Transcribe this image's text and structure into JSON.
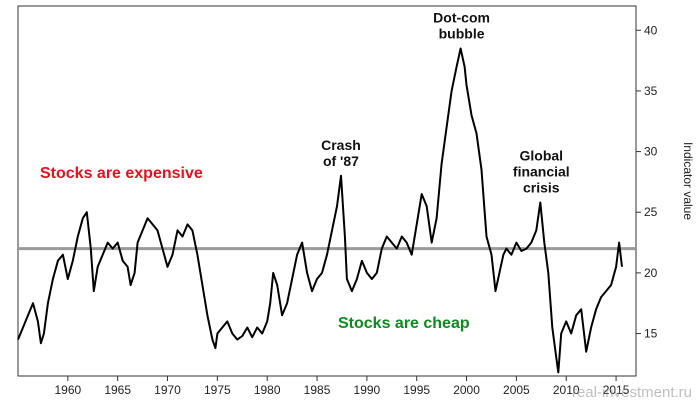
{
  "chart_data": {
    "type": "line",
    "title": "",
    "xlabel": "",
    "ylabel": "Indicator value",
    "xlim": [
      1955,
      2017
    ],
    "ylim": [
      11.5,
      42
    ],
    "grid": false,
    "legend": "none",
    "x_ticks": [
      1960,
      1965,
      1970,
      1975,
      1980,
      1985,
      1990,
      1995,
      2000,
      2005,
      2010,
      2015
    ],
    "x_tick_labels": [
      "1960",
      "1965",
      "1970",
      "1975",
      "1980",
      "1985",
      "1990",
      "1995",
      "2000",
      "2005",
      "2010",
      "2015"
    ],
    "y_ticks": [
      15,
      20,
      25,
      30,
      35,
      40
    ],
    "y_tick_labels": [
      "15",
      "20",
      "25",
      "30",
      "35",
      "40"
    ],
    "reference_line": {
      "value": 22,
      "color": "#9a9a9a"
    },
    "series": [
      {
        "color": "#000000",
        "x": [
          1955.0,
          1955.5,
          1956.0,
          1956.5,
          1957.0,
          1957.3,
          1957.6,
          1958.0,
          1958.5,
          1959.0,
          1959.5,
          1960.0,
          1960.5,
          1961.0,
          1961.5,
          1961.9,
          1962.3,
          1962.6,
          1963.0,
          1963.5,
          1964.0,
          1964.5,
          1965.0,
          1965.5,
          1966.0,
          1966.3,
          1966.7,
          1967.0,
          1967.5,
          1968.0,
          1968.5,
          1969.0,
          1969.5,
          1970.0,
          1970.5,
          1971.0,
          1971.5,
          1972.0,
          1972.5,
          1973.0,
          1973.5,
          1974.0,
          1974.5,
          1974.8,
          1975.0,
          1975.5,
          1976.0,
          1976.5,
          1977.0,
          1977.5,
          1978.0,
          1978.5,
          1979.0,
          1979.5,
          1980.0,
          1980.3,
          1980.6,
          1981.0,
          1981.5,
          1982.0,
          1982.5,
          1983.0,
          1983.5,
          1984.0,
          1984.5,
          1985.0,
          1985.5,
          1986.0,
          1986.5,
          1987.0,
          1987.4,
          1987.8,
          1988.0,
          1988.5,
          1989.0,
          1989.5,
          1990.0,
          1990.5,
          1991.0,
          1991.5,
          1992.0,
          1992.5,
          1993.0,
          1993.5,
          1994.0,
          1994.5,
          1995.0,
          1995.5,
          1996.0,
          1996.5,
          1997.0,
          1997.5,
          1998.0,
          1998.5,
          1999.0,
          1999.4,
          1999.8,
          2000.0,
          2000.5,
          2001.0,
          2001.5,
          2002.0,
          2002.5,
          2002.9,
          2003.3,
          2003.7,
          2004.0,
          2004.5,
          2005.0,
          2005.5,
          2006.0,
          2006.5,
          2007.0,
          2007.4,
          2007.8,
          2008.2,
          2008.6,
          2009.0,
          2009.2,
          2009.5,
          2010.0,
          2010.5,
          2011.0,
          2011.5,
          2012.0,
          2012.5,
          2013.0,
          2013.5,
          2014.0,
          2014.5,
          2015.0,
          2015.3,
          2015.6
        ],
        "y": [
          14.5,
          15.5,
          16.5,
          17.5,
          16.0,
          14.2,
          15.0,
          17.5,
          19.5,
          21.0,
          21.5,
          19.5,
          21.0,
          23.0,
          24.5,
          25.0,
          22.0,
          18.5,
          20.5,
          21.5,
          22.5,
          22.0,
          22.5,
          21.0,
          20.5,
          19.0,
          20.0,
          22.5,
          23.5,
          24.5,
          24.0,
          23.5,
          22.0,
          20.5,
          21.5,
          23.5,
          23.0,
          24.0,
          23.5,
          21.5,
          19.0,
          16.5,
          14.5,
          13.8,
          15.0,
          15.5,
          16.0,
          15.0,
          14.5,
          14.8,
          15.5,
          14.7,
          15.5,
          15.0,
          16.0,
          17.5,
          20.0,
          19.0,
          16.5,
          17.5,
          19.5,
          21.5,
          22.5,
          20.0,
          18.5,
          19.5,
          20.0,
          21.5,
          23.5,
          25.5,
          28.0,
          23.0,
          19.5,
          18.5,
          19.5,
          21.0,
          20.0,
          19.5,
          20.0,
          22.0,
          23.0,
          22.5,
          22.0,
          23.0,
          22.5,
          21.5,
          24.0,
          26.5,
          25.5,
          22.5,
          24.5,
          29.0,
          32.0,
          35.0,
          37.0,
          38.5,
          37.0,
          35.5,
          33.0,
          31.5,
          28.5,
          23.0,
          21.5,
          18.5,
          20.0,
          21.5,
          22.0,
          21.5,
          22.5,
          21.8,
          22.0,
          22.5,
          23.5,
          25.8,
          22.5,
          20.0,
          15.5,
          13.0,
          11.8,
          15.0,
          16.0,
          15.0,
          16.5,
          17.0,
          13.5,
          15.5,
          17.0,
          18.0,
          18.5,
          19.0,
          20.5,
          22.5,
          20.5
        ]
      }
    ],
    "annotations": [
      {
        "text": [
          "Dot-com",
          "bubble"
        ],
        "x": 1999.5,
        "y": 38.5
      },
      {
        "text": [
          "Crash",
          "of '87"
        ],
        "x": 1987.4,
        "y": 28.0
      },
      {
        "text": [
          "Global",
          "financial",
          "crisis"
        ],
        "x": 2007.5,
        "y": 25.8
      }
    ],
    "region_labels": [
      {
        "text": "Stocks are expensive",
        "color": "#e8101c"
      },
      {
        "text": "Stocks are cheap",
        "color": "#0e8a1e"
      }
    ],
    "watermark": "real-investment.ru"
  }
}
